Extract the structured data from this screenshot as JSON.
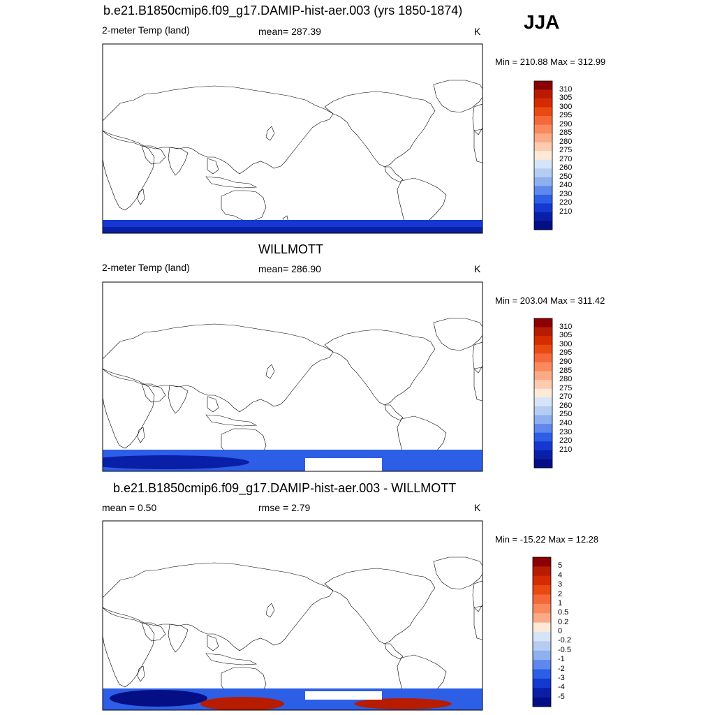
{
  "season": "JJA",
  "panels": [
    {
      "id": "model",
      "title": "b.e21.B1850cmip6.f09_g17.DAMIP-hist-aer.003 (yrs 1850-1874)",
      "left_label": "2-meter Temp (land)",
      "center_label": "mean= 287.39",
      "units": "K",
      "minmax": "Min = 210.88 Max = 312.99",
      "colorbar": [
        "310",
        "305",
        "300",
        "295",
        "290",
        "285",
        "280",
        "275",
        "270",
        "260",
        "250",
        "240",
        "230",
        "220",
        "210"
      ]
    },
    {
      "id": "obs",
      "title": "WILLMOTT",
      "left_label": "2-meter Temp (land)",
      "center_label": "mean= 286.90",
      "units": "K",
      "minmax": "Min = 203.04 Max = 311.42",
      "colorbar": [
        "310",
        "305",
        "300",
        "295",
        "290",
        "285",
        "280",
        "275",
        "270",
        "260",
        "250",
        "240",
        "230",
        "220",
        "210"
      ]
    },
    {
      "id": "diff",
      "title": "b.e21.B1850cmip6.f09_g17.DAMIP-hist-aer.003 - WILLMOTT",
      "left_label": "mean =   0.50",
      "center_label": "rmse =   2.79",
      "units": "K",
      "minmax": "Min = -15.22 Max =  12.28",
      "colorbar": [
        "5",
        "4",
        "3",
        "2",
        "1",
        "0.5",
        "0.2",
        "0",
        "-0.2",
        "-0.5",
        "-1",
        "-2",
        "-3",
        "-4",
        "-5"
      ]
    }
  ],
  "colors": {
    "temp_scale": [
      "#8b0000",
      "#b71c00",
      "#d42c00",
      "#ea4a12",
      "#f4683a",
      "#f88a5e",
      "#fbaa86",
      "#fccbb0",
      "#fde9d8",
      "#d6e4f7",
      "#b5cdf2",
      "#8fb0ef",
      "#5e88ec",
      "#2d5ee6",
      "#1538d0",
      "#0a1fa8",
      "#040f85"
    ],
    "diff_scale": [
      "#8b0000",
      "#b71c00",
      "#d42c00",
      "#ea4a12",
      "#f4683a",
      "#f88a5e",
      "#fbaa86",
      "#fde9d8",
      "#d6e4f7",
      "#b5cdf2",
      "#8fb0ef",
      "#5e88ec",
      "#2d5ee6",
      "#1538d0",
      "#0a1fa8",
      "#040f85"
    ]
  }
}
